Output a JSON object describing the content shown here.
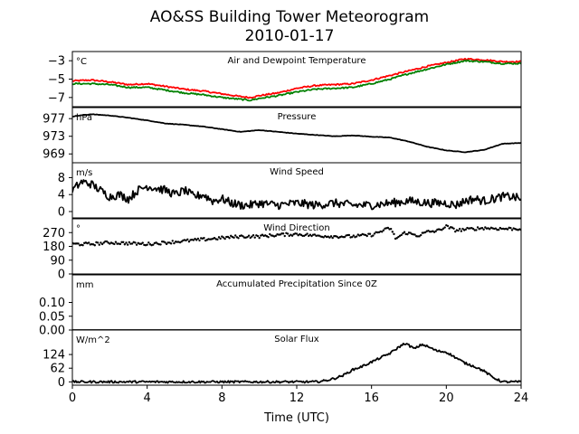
{
  "figure": {
    "title": "AO&SS Building Tower Meteorogram",
    "subtitle": "2010-01-17",
    "xlabel": "Time (UTC)",
    "xlim": [
      0,
      24
    ],
    "xticks": [
      0,
      4,
      8,
      12,
      16,
      20,
      24
    ]
  },
  "chart_data": [
    {
      "type": "line",
      "title": "Air and Dewpoint Temperature",
      "unit": "°C",
      "ylim": [
        -8.0,
        -2.0
      ],
      "yticks": [
        {
          "v": -3,
          "label": "−3"
        },
        {
          "v": -5,
          "label": "−5"
        },
        {
          "v": -7,
          "label": "−7"
        }
      ],
      "series": [
        {
          "color": "#ff0000",
          "noise": 0.08,
          "x": [
            0,
            1,
            2,
            3,
            4,
            5,
            6,
            7,
            8,
            9,
            9.5,
            10,
            11,
            12,
            13,
            14,
            15,
            16,
            17,
            18,
            19,
            20,
            20.5,
            21,
            22,
            23,
            24
          ],
          "y": [
            -5.2,
            -5.1,
            -5.3,
            -5.6,
            -5.5,
            -5.8,
            -6.1,
            -6.3,
            -6.6,
            -6.9,
            -7.0,
            -6.8,
            -6.5,
            -6.0,
            -5.7,
            -5.6,
            -5.5,
            -5.1,
            -4.6,
            -4.1,
            -3.6,
            -3.2,
            -3.0,
            -2.8,
            -2.9,
            -3.1,
            -3.1
          ]
        },
        {
          "color": "#008000",
          "noise": 0.08,
          "x": [
            0,
            1,
            2,
            3,
            4,
            5,
            6,
            7,
            8,
            9,
            9.5,
            10,
            11,
            12,
            13,
            14,
            15,
            16,
            17,
            18,
            19,
            20,
            20.5,
            21,
            22,
            23,
            24
          ],
          "y": [
            -5.5,
            -5.5,
            -5.6,
            -5.9,
            -5.9,
            -6.2,
            -6.5,
            -6.7,
            -7.0,
            -7.2,
            -7.3,
            -7.1,
            -6.8,
            -6.4,
            -6.1,
            -6.0,
            -5.9,
            -5.5,
            -5.0,
            -4.4,
            -3.9,
            -3.4,
            -3.2,
            -3.0,
            -3.1,
            -3.3,
            -3.3
          ]
        }
      ]
    },
    {
      "type": "line",
      "title": "Pressure",
      "unit": "hPa",
      "ylim": [
        967.0,
        979.5
      ],
      "yticks": [
        {
          "v": 977,
          "label": "977"
        },
        {
          "v": 973,
          "label": "973"
        },
        {
          "v": 969,
          "label": "969"
        }
      ],
      "series": [
        {
          "color": "#000000",
          "noise": 0.05,
          "x": [
            0,
            1,
            2,
            3,
            4,
            5,
            6,
            7,
            8,
            9,
            10,
            11,
            12,
            13,
            14,
            15,
            16,
            17,
            18,
            19,
            20,
            21,
            22,
            23,
            24
          ],
          "y": [
            977.5,
            978.0,
            977.7,
            977.2,
            976.6,
            975.9,
            975.6,
            975.2,
            974.6,
            974.0,
            974.4,
            974.0,
            973.6,
            973.3,
            973.0,
            973.2,
            972.9,
            972.7,
            971.8,
            970.6,
            969.8,
            969.4,
            969.9,
            971.3,
            971.5
          ]
        }
      ]
    },
    {
      "type": "line",
      "title": "Wind Speed",
      "unit": "m/s",
      "ylim": [
        -1.5,
        11.5
      ],
      "yticks": [
        {
          "v": 8,
          "label": "8"
        },
        {
          "v": 4,
          "label": "4"
        },
        {
          "v": 0,
          "label": "0"
        }
      ],
      "series": [
        {
          "color": "#000000",
          "noise": 1.0,
          "x": [
            0,
            0.5,
            1,
            1.5,
            2,
            2.5,
            3,
            3.5,
            4,
            4.5,
            5,
            5.5,
            6,
            6.5,
            7,
            7.5,
            8,
            8.5,
            9,
            9.5,
            10,
            11,
            12,
            13,
            14,
            15,
            16,
            17,
            18,
            19,
            20,
            20.5,
            21,
            21.5,
            22,
            22.5,
            23,
            23.5,
            24
          ],
          "y": [
            5,
            7,
            6.5,
            5,
            3.5,
            4,
            3,
            5,
            6,
            5.5,
            5,
            4,
            5,
            3.5,
            4,
            2.5,
            3,
            2,
            1.5,
            1.5,
            2,
            1.5,
            2,
            1.5,
            2,
            1.5,
            1.5,
            2,
            2.5,
            2,
            2,
            1.5,
            2.5,
            3,
            2.5,
            3,
            3.5,
            3.5,
            3
          ]
        }
      ]
    },
    {
      "type": "scatter",
      "title": "Wind Direction",
      "unit": "°",
      "ylim": [
        0,
        360
      ],
      "yticks": [
        {
          "v": 270,
          "label": "270"
        },
        {
          "v": 180,
          "label": "180"
        },
        {
          "v": 90,
          "label": "90"
        },
        {
          "v": 0,
          "label": "0"
        }
      ],
      "series": [
        {
          "color": "#000000",
          "noise": 10,
          "x": [
            0,
            1,
            2,
            3,
            4,
            5,
            6,
            7,
            8,
            9,
            10,
            11,
            12,
            13,
            14,
            15,
            16,
            17,
            17.3,
            17.8,
            18.5,
            19,
            19.5,
            20,
            20.5,
            21,
            22,
            23,
            24
          ],
          "y": [
            195,
            195,
            205,
            200,
            195,
            205,
            215,
            225,
            235,
            245,
            245,
            255,
            260,
            250,
            245,
            245,
            255,
            300,
            230,
            270,
            250,
            275,
            280,
            310,
            285,
            290,
            300,
            295,
            295
          ]
        }
      ]
    },
    {
      "type": "line",
      "title": "Accumulated Precipitation Since 0Z",
      "unit": "mm",
      "ylim": [
        0.0,
        0.2
      ],
      "yticks": [
        {
          "v": 0.1,
          "label": "0.10"
        },
        {
          "v": 0.05,
          "label": "0.05"
        },
        {
          "v": 0.0,
          "label": "0.00"
        }
      ],
      "series": [
        {
          "color": "#000000",
          "noise": 0,
          "x": [
            0,
            24
          ],
          "y": [
            0.0,
            0.0
          ]
        }
      ]
    },
    {
      "type": "line",
      "title": "Solar Flux",
      "unit": "W/m^2",
      "ylim": [
        -15,
        235
      ],
      "yticks": [
        {
          "v": 124,
          "label": "124"
        },
        {
          "v": 62,
          "label": "62"
        },
        {
          "v": 0,
          "label": "0"
        }
      ],
      "series": [
        {
          "color": "#000000",
          "noise": 5,
          "x": [
            0,
            13,
            13.5,
            14,
            14.5,
            15,
            15.5,
            16,
            16.5,
            17,
            17.5,
            17.8,
            18.3,
            18.7,
            19,
            19.5,
            20,
            20.5,
            21,
            21.5,
            22,
            22.5,
            23,
            24
          ],
          "y": [
            0,
            0,
            5,
            15,
            30,
            55,
            70,
            90,
            110,
            130,
            160,
            175,
            150,
            170,
            160,
            140,
            135,
            110,
            85,
            70,
            50,
            20,
            0,
            0
          ]
        }
      ]
    }
  ]
}
